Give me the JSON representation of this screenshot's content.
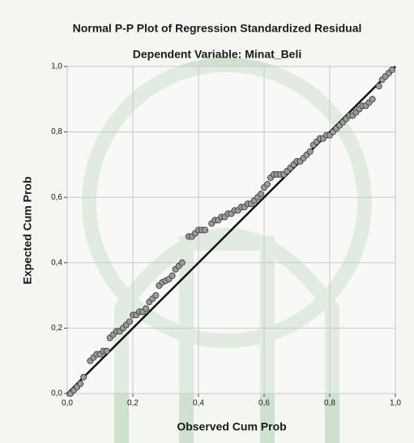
{
  "chart_data": {
    "type": "scatter",
    "title": "Normal P-P Plot of Regression Standardized Residual",
    "subtitle": "Dependent Variable: Minat_Beli",
    "x_label": "Observed Cum Prob",
    "y_label": "Expected Cum Prob",
    "color": "#9a9a9a",
    "grid": true,
    "xlim": [
      0,
      1
    ],
    "ylim": [
      0,
      1
    ],
    "xticks": [
      {
        "value": 0,
        "label": "0,0"
      },
      {
        "value": 0.2,
        "label": "0,2"
      },
      {
        "value": 0.4,
        "label": "0,4"
      },
      {
        "value": 0.6,
        "label": "0,6"
      },
      {
        "value": 0.8,
        "label": "0,8"
      },
      {
        "value": 1,
        "label": "1,0"
      }
    ],
    "yticks": [
      {
        "value": 0,
        "label": "0,0"
      },
      {
        "value": 0.2,
        "label": "0,2"
      },
      {
        "value": 0.4,
        "label": "0,4"
      },
      {
        "value": 0.6,
        "label": "0,6"
      },
      {
        "value": 0.8,
        "label": "0,8"
      },
      {
        "value": 1,
        "label": "1,0"
      }
    ],
    "x": [
      0.01,
      0.02,
      0.03,
      0.04,
      0.05,
      0.07,
      0.08,
      0.09,
      0.1,
      0.11,
      0.12,
      0.13,
      0.14,
      0.15,
      0.16,
      0.17,
      0.18,
      0.19,
      0.2,
      0.21,
      0.22,
      0.23,
      0.24,
      0.25,
      0.26,
      0.27,
      0.28,
      0.29,
      0.3,
      0.31,
      0.32,
      0.33,
      0.34,
      0.35,
      0.37,
      0.38,
      0.39,
      0.4,
      0.41,
      0.42,
      0.44,
      0.45,
      0.46,
      0.47,
      0.48,
      0.49,
      0.5,
      0.51,
      0.52,
      0.53,
      0.54,
      0.55,
      0.56,
      0.57,
      0.58,
      0.59,
      0.6,
      0.61,
      0.62,
      0.63,
      0.64,
      0.65,
      0.66,
      0.67,
      0.68,
      0.69,
      0.7,
      0.71,
      0.72,
      0.73,
      0.74,
      0.75,
      0.76,
      0.77,
      0.78,
      0.79,
      0.8,
      0.81,
      0.82,
      0.83,
      0.84,
      0.85,
      0.86,
      0.87,
      0.88,
      0.89,
      0.9,
      0.91,
      0.92,
      0.93,
      0.95,
      0.96,
      0.97,
      0.98,
      0.99
    ],
    "values": [
      0.0,
      0.01,
      0.02,
      0.03,
      0.05,
      0.1,
      0.11,
      0.12,
      0.12,
      0.13,
      0.13,
      0.17,
      0.18,
      0.19,
      0.19,
      0.2,
      0.21,
      0.22,
      0.24,
      0.24,
      0.25,
      0.25,
      0.26,
      0.28,
      0.29,
      0.3,
      0.33,
      0.34,
      0.345,
      0.35,
      0.36,
      0.38,
      0.39,
      0.4,
      0.48,
      0.48,
      0.49,
      0.5,
      0.5,
      0.5,
      0.52,
      0.53,
      0.53,
      0.54,
      0.54,
      0.55,
      0.55,
      0.56,
      0.56,
      0.57,
      0.57,
      0.58,
      0.58,
      0.59,
      0.6,
      0.61,
      0.63,
      0.64,
      0.66,
      0.67,
      0.67,
      0.67,
      0.67,
      0.68,
      0.69,
      0.7,
      0.71,
      0.71,
      0.72,
      0.73,
      0.74,
      0.76,
      0.77,
      0.78,
      0.78,
      0.79,
      0.79,
      0.8,
      0.81,
      0.82,
      0.83,
      0.84,
      0.85,
      0.85,
      0.86,
      0.87,
      0.88,
      0.88,
      0.89,
      0.9,
      0.94,
      0.96,
      0.97,
      0.98,
      0.99
    ]
  }
}
